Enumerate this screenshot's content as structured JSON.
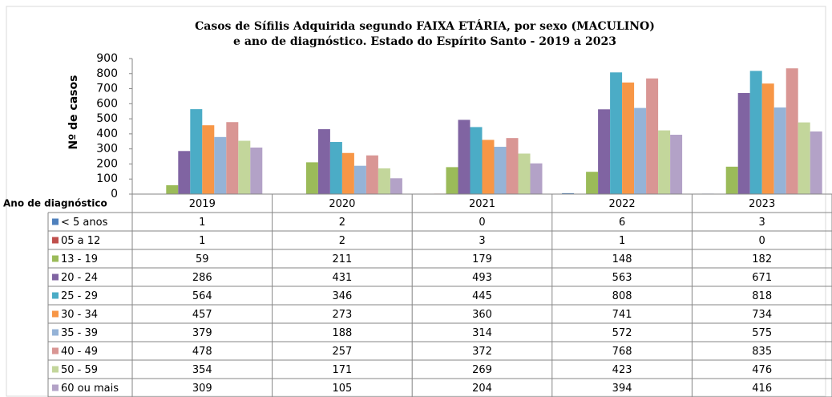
{
  "chart_data": {
    "type": "bar",
    "title": [
      "Casos de Sífilis  Adquirida  segundo FAIXA ETÁRIA, por sexo (MACULINO)",
      "e ano de diagnóstico. Estado do Espírito Santo - 2019 a 2023"
    ],
    "y_label": "Nº de casos",
    "table_header": "Ano de diagnóstico",
    "categories": [
      "2019",
      "2020",
      "2021",
      "2022",
      "2023"
    ],
    "ylim": [
      0,
      900
    ],
    "yticks": [
      0,
      100,
      200,
      300,
      400,
      500,
      600,
      700,
      800,
      900
    ],
    "series": [
      {
        "name": "< 5 anos",
        "color": "#4f81bd",
        "values": [
          1,
          2,
          0,
          6,
          3
        ]
      },
      {
        "name": "05 a 12",
        "color": "#c0504d",
        "values": [
          1,
          2,
          3,
          1,
          0
        ]
      },
      {
        "name": "13 - 19",
        "color": "#9bbb59",
        "values": [
          59,
          211,
          179,
          148,
          182
        ]
      },
      {
        "name": "20 - 24",
        "color": "#8064a2",
        "values": [
          286,
          431,
          493,
          563,
          671
        ]
      },
      {
        "name": "25 - 29",
        "color": "#4bacc6",
        "values": [
          564,
          346,
          445,
          808,
          818
        ]
      },
      {
        "name": "30 - 34",
        "color": "#f79646",
        "values": [
          457,
          273,
          360,
          741,
          734
        ]
      },
      {
        "name": "35 - 39",
        "color": "#95b3d7",
        "values": [
          379,
          188,
          314,
          572,
          575
        ]
      },
      {
        "name": "40 - 49",
        "color": "#d99694",
        "values": [
          478,
          257,
          372,
          768,
          835
        ]
      },
      {
        "name": "50 - 59",
        "color": "#c3d69b",
        "values": [
          354,
          171,
          269,
          423,
          476
        ]
      },
      {
        "name": "60 ou mais",
        "color": "#b3a2c7",
        "values": [
          309,
          105,
          204,
          394,
          416
        ]
      }
    ]
  }
}
